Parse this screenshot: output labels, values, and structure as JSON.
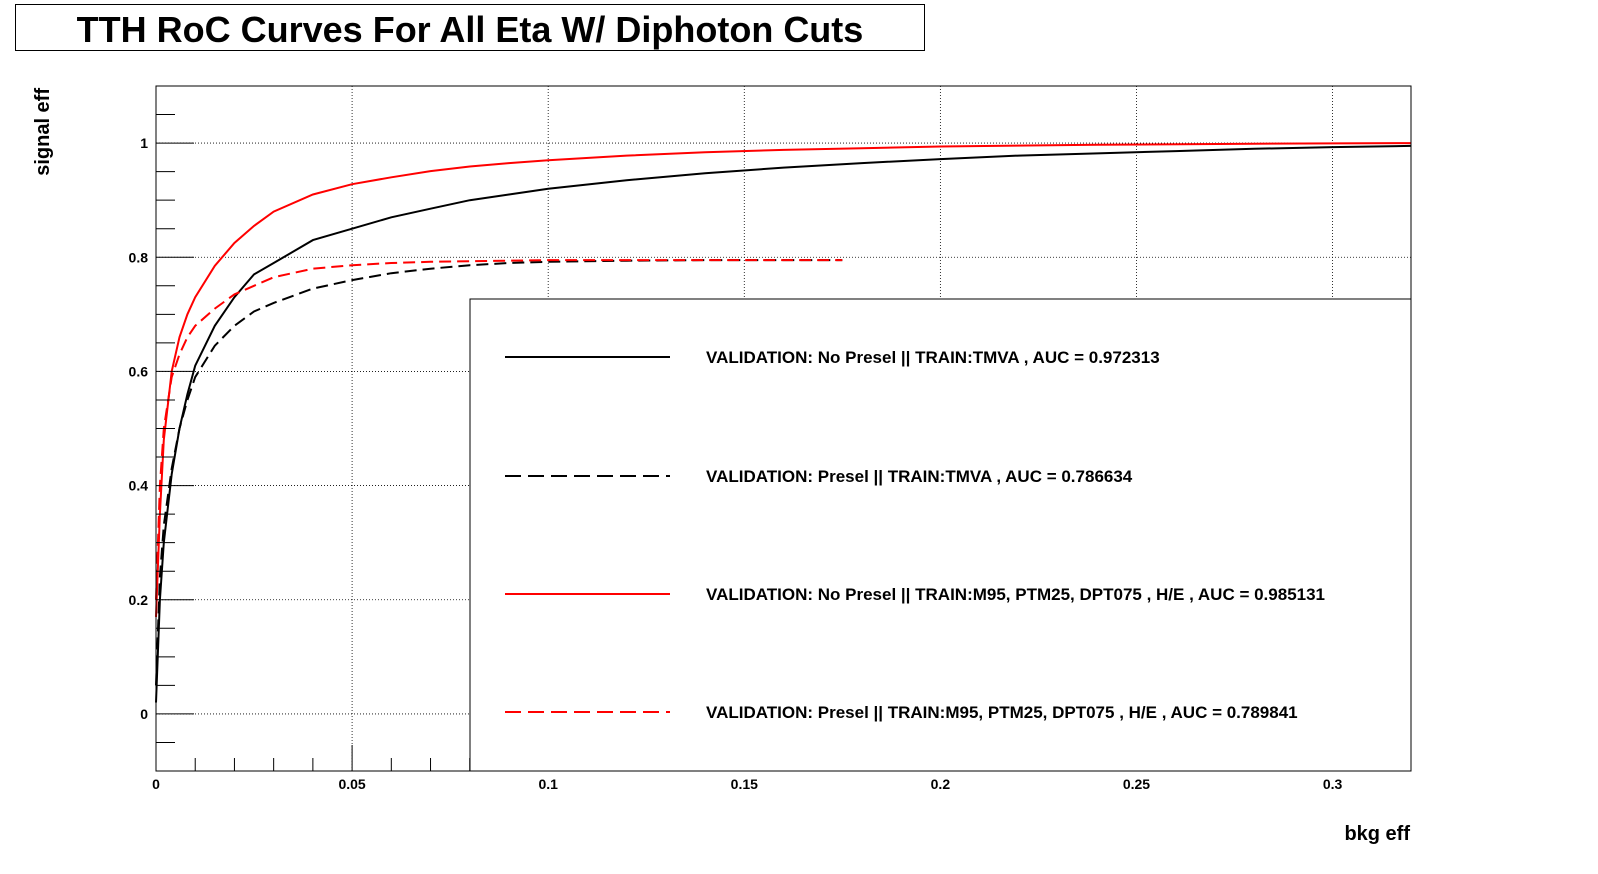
{
  "chart_data": {
    "type": "line",
    "title": "TTH RoC Curves For All Eta W/ Diphoton Cuts",
    "xlabel": "bkg eff",
    "ylabel": "signal eff",
    "xlim": [
      0,
      0.32
    ],
    "ylim": [
      -0.1,
      1.1
    ],
    "x_ticks": [
      0,
      0.05,
      0.1,
      0.15,
      0.2,
      0.25,
      0.3
    ],
    "x_tick_labels": [
      "0",
      "0.05",
      "0.1",
      "0.15",
      "0.2",
      "0.25",
      "0.3"
    ],
    "y_ticks": [
      0,
      0.2,
      0.4,
      0.6,
      0.8,
      1
    ],
    "y_tick_labels": [
      "0",
      "0.2",
      "0.4",
      "0.6",
      "0.8",
      "1"
    ],
    "grid": true,
    "legend_position": "bottom-right",
    "series": [
      {
        "name": "VALIDATION: No Presel || TRAIN:TMVA , AUC = 0.972313",
        "color": "#000000",
        "style": "solid",
        "x": [
          0,
          0.001,
          0.002,
          0.004,
          0.006,
          0.008,
          0.01,
          0.015,
          0.02,
          0.025,
          0.03,
          0.04,
          0.05,
          0.06,
          0.07,
          0.08,
          0.09,
          0.1,
          0.12,
          0.14,
          0.16,
          0.18,
          0.2,
          0.22,
          0.24,
          0.26,
          0.28,
          0.3,
          0.32
        ],
        "y": [
          0.02,
          0.2,
          0.3,
          0.42,
          0.5,
          0.56,
          0.61,
          0.68,
          0.73,
          0.77,
          0.79,
          0.83,
          0.85,
          0.87,
          0.885,
          0.9,
          0.91,
          0.92,
          0.935,
          0.947,
          0.957,
          0.965,
          0.972,
          0.978,
          0.982,
          0.986,
          0.99,
          0.993,
          0.995
        ]
      },
      {
        "name": "VALIDATION: Presel || TRAIN:TMVA , AUC = 0.786634",
        "color": "#000000",
        "style": "dashed",
        "x": [
          0,
          0.001,
          0.002,
          0.004,
          0.006,
          0.008,
          0.01,
          0.015,
          0.02,
          0.025,
          0.03,
          0.04,
          0.05,
          0.06,
          0.07,
          0.08,
          0.09,
          0.1,
          0.12,
          0.14,
          0.16,
          0.175
        ],
        "y": [
          0.05,
          0.24,
          0.33,
          0.43,
          0.5,
          0.55,
          0.59,
          0.645,
          0.68,
          0.705,
          0.72,
          0.745,
          0.76,
          0.772,
          0.78,
          0.786,
          0.79,
          0.792,
          0.794,
          0.795,
          0.795,
          0.795
        ]
      },
      {
        "name": "VALIDATION: No Presel || TRAIN:M95, PTM25, DPT075 , H/E , AUC = 0.985131",
        "color": "#ff0000",
        "style": "solid",
        "x": [
          0,
          0.001,
          0.002,
          0.004,
          0.006,
          0.008,
          0.01,
          0.015,
          0.02,
          0.025,
          0.03,
          0.04,
          0.05,
          0.06,
          0.07,
          0.08,
          0.09,
          0.1,
          0.12,
          0.14,
          0.16,
          0.18,
          0.2,
          0.24,
          0.28,
          0.32
        ],
        "y": [
          0.17,
          0.35,
          0.48,
          0.6,
          0.66,
          0.7,
          0.73,
          0.785,
          0.825,
          0.855,
          0.88,
          0.91,
          0.928,
          0.94,
          0.951,
          0.959,
          0.965,
          0.97,
          0.978,
          0.984,
          0.988,
          0.991,
          0.994,
          0.997,
          0.999,
          1.0
        ]
      },
      {
        "name": "VALIDATION: Presel || TRAIN:M95, PTM25, DPT075 , H/E , AUC = 0.789841",
        "color": "#ff0000",
        "style": "dashed",
        "x": [
          0,
          0.001,
          0.002,
          0.004,
          0.006,
          0.008,
          0.01,
          0.015,
          0.02,
          0.025,
          0.03,
          0.04,
          0.05,
          0.06,
          0.07,
          0.08,
          0.09,
          0.1,
          0.12,
          0.14,
          0.16,
          0.175
        ],
        "y": [
          0.2,
          0.4,
          0.5,
          0.59,
          0.63,
          0.66,
          0.68,
          0.71,
          0.735,
          0.75,
          0.765,
          0.78,
          0.786,
          0.79,
          0.792,
          0.793,
          0.794,
          0.795,
          0.795,
          0.795,
          0.795,
          0.795
        ]
      }
    ]
  }
}
